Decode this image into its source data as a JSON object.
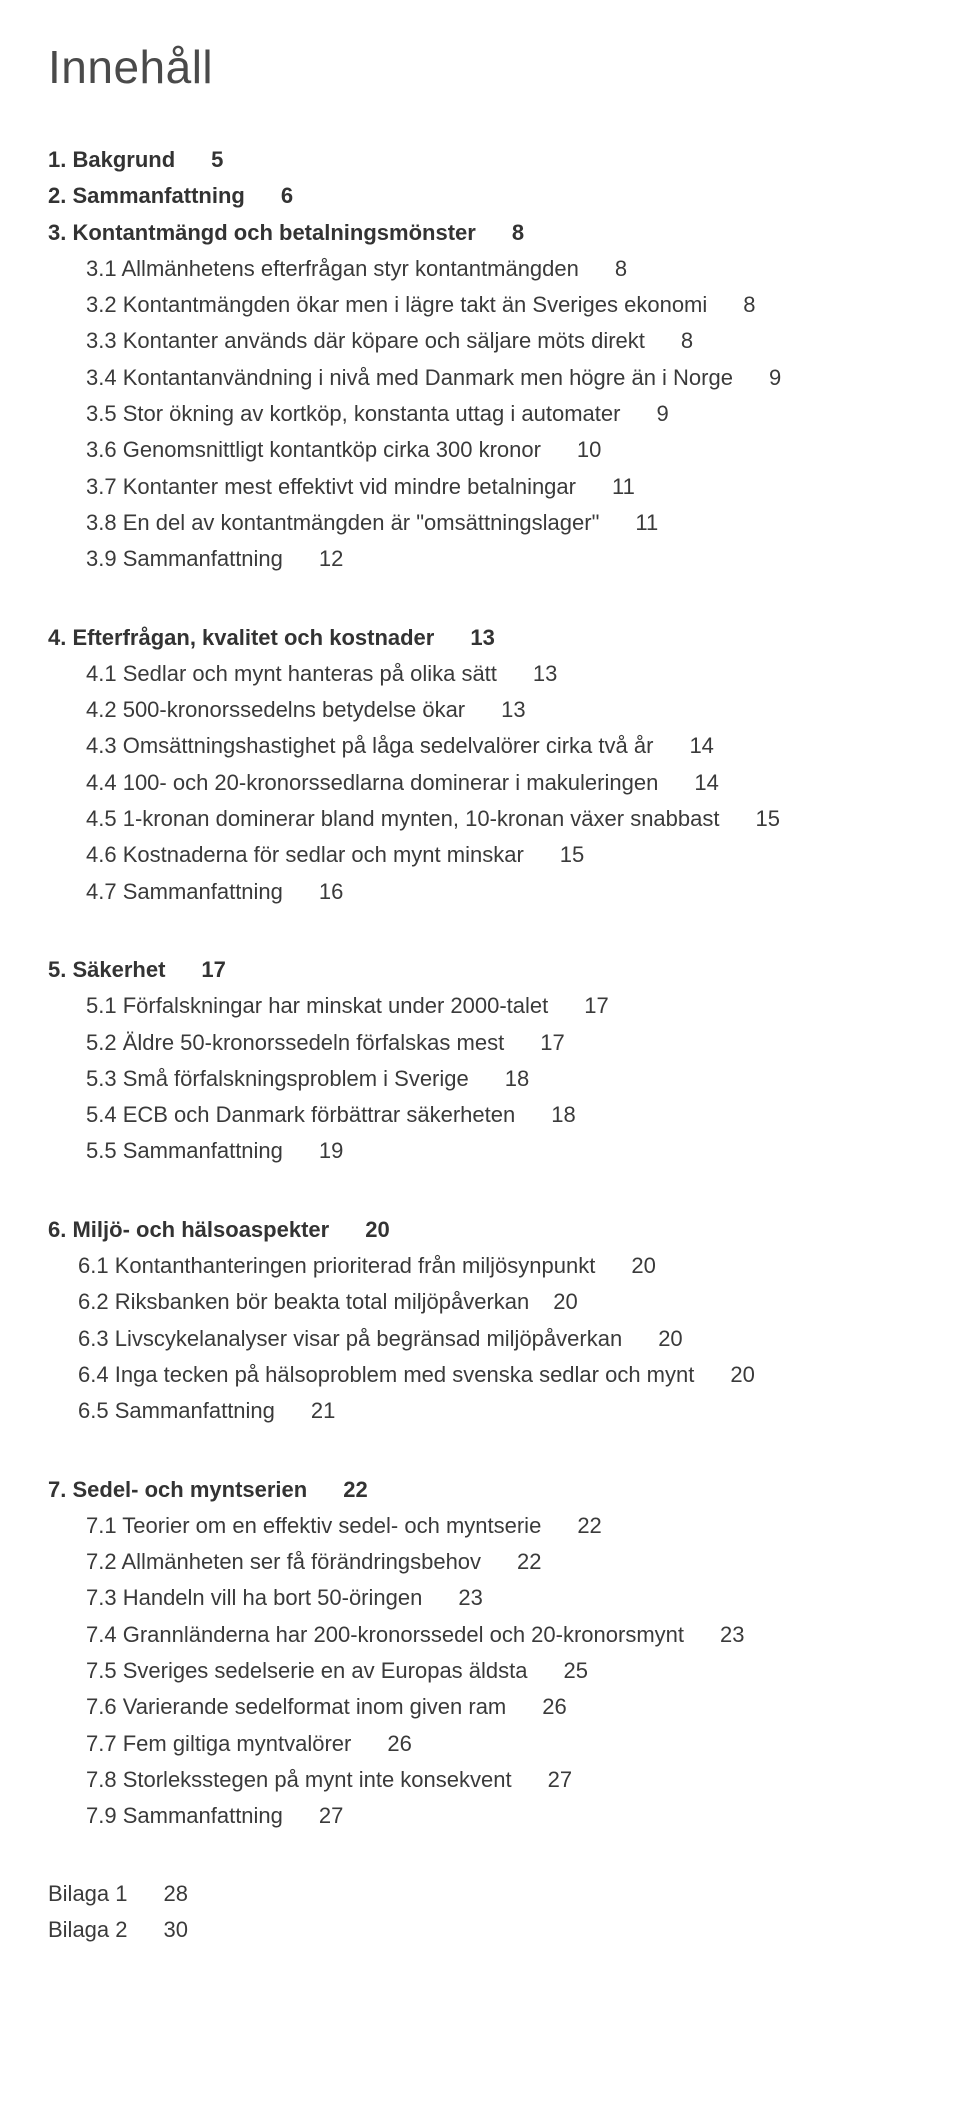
{
  "title": "Innehåll",
  "sections": [
    {
      "heading": {
        "num": "1.",
        "label": "Bakgrund",
        "page": "5"
      },
      "entries": []
    },
    {
      "heading": {
        "num": "2.",
        "label": "Sammanfattning",
        "page": "6"
      },
      "entries": []
    },
    {
      "heading": {
        "num": "3.",
        "label": "Kontantmängd och betalningsmönster",
        "page": "8"
      },
      "entries": [
        {
          "num": "3.1",
          "label": "Allmänhetens efterfrågan styr kontantmängden",
          "page": "8"
        },
        {
          "num": "3.2",
          "label": "Kontantmängden ökar men i lägre takt än Sveriges ekonomi",
          "page": "8"
        },
        {
          "num": "3.3",
          "label": "Kontanter används där köpare och säljare möts direkt",
          "page": "8"
        },
        {
          "num": "3.4",
          "label": "Kontantanvändning i nivå med Danmark men högre än i Norge",
          "page": "9"
        },
        {
          "num": "3.5",
          "label": "Stor ökning av kortköp, konstanta uttag i automater",
          "page": "9"
        },
        {
          "num": "3.6",
          "label": "Genomsnittligt kontantköp cirka 300 kronor",
          "page": "10"
        },
        {
          "num": "3.7",
          "label": "Kontanter mest effektivt vid mindre betalningar",
          "page": "11"
        },
        {
          "num": "3.8",
          "label": "En del av kontantmängden är \"omsättningslager\"",
          "page": "11"
        },
        {
          "num": "3.9",
          "label": "Sammanfattning",
          "page": "12"
        }
      ]
    },
    {
      "heading": {
        "num": "4.",
        "label": "Efterfrågan, kvalitet och kostnader",
        "page": "13"
      },
      "entries": [
        {
          "num": "4.1",
          "label": "Sedlar och mynt hanteras på olika sätt",
          "page": "13"
        },
        {
          "num": "4.2",
          "label": "500-kronorssedelns betydelse ökar",
          "page": "13"
        },
        {
          "num": "4.3",
          "label": "Omsättningshastighet på låga sedelvalörer cirka två år",
          "page": "14"
        },
        {
          "num": "4.4",
          "label": "100- och 20-kronorssedlarna dominerar i makuleringen",
          "page": "14"
        },
        {
          "num": "4.5",
          "label": "1-kronan dominerar bland mynten, 10-kronan växer snabbast",
          "page": "15"
        },
        {
          "num": "4.6",
          "label": "Kostnaderna för sedlar och mynt minskar",
          "page": "15"
        },
        {
          "num": "4.7",
          "label": "Sammanfattning",
          "page": "16"
        }
      ]
    },
    {
      "heading": {
        "num": "5.",
        "label": "Säkerhet",
        "page": "17"
      },
      "entries": [
        {
          "num": "5.1",
          "label": "Förfalskningar har minskat under 2000-talet",
          "page": "17"
        },
        {
          "num": "5.2",
          "label": "Äldre 50-kronorssedeln förfalskas mest",
          "page": "17"
        },
        {
          "num": "5.3",
          "label": "Små förfalskningsproblem i Sverige",
          "page": "18"
        },
        {
          "num": "5.4",
          "label": "ECB och Danmark förbättrar säkerheten",
          "page": "18"
        },
        {
          "num": "5.5",
          "label": "Sammanfattning",
          "page": "19"
        }
      ]
    },
    {
      "heading": {
        "num": "6.",
        "label": "Miljö- och hälsoaspekter",
        "page": "20"
      },
      "tight": true,
      "entries": [
        {
          "num": "6.1",
          "label": "Kontanthanteringen prioriterad från miljösynpunkt",
          "page": "20"
        },
        {
          "num": "6.2",
          "label": "Riksbanken bör beakta total miljöpåverkan",
          "page": "20",
          "pageTight": true
        },
        {
          "num": "6.3",
          "label": "Livscykelanalyser visar på begränsad miljöpåverkan",
          "page": "20"
        },
        {
          "num": "6.4",
          "label": "Inga tecken på hälsoproblem med svenska sedlar och mynt",
          "page": "20"
        },
        {
          "num": "6.5",
          "label": "Sammanfattning",
          "page": "21"
        }
      ]
    },
    {
      "heading": {
        "num": "7.",
        "label": "Sedel- och myntserien",
        "page": "22"
      },
      "entries": [
        {
          "num": "7.1",
          "label": "Teorier om en effektiv sedel- och myntserie",
          "page": "22"
        },
        {
          "num": "7.2",
          "label": "Allmänheten ser få förändringsbehov",
          "page": "22"
        },
        {
          "num": "7.3",
          "label": "Handeln vill ha bort 50-öringen",
          "page": "23"
        },
        {
          "num": "7.4",
          "label": "Grannländerna har 200-kronorssedel och 20-kronorsmynt",
          "page": "23"
        },
        {
          "num": "7.5",
          "label": "Sveriges sedelserie en av Europas äldsta",
          "page": "25"
        },
        {
          "num": "7.6",
          "label": "Varierande sedelformat inom given ram",
          "page": "26"
        },
        {
          "num": "7.7",
          "label": "Fem giltiga myntvalörer",
          "page": "26"
        },
        {
          "num": "7.8",
          "label": "Storleksstegen på mynt inte konsekvent",
          "page": "27"
        },
        {
          "num": "7.9",
          "label": "Sammanfattning",
          "page": "27"
        }
      ]
    }
  ],
  "appendices": [
    {
      "label": "Bilaga 1",
      "page": "28"
    },
    {
      "label": "Bilaga 2",
      "page": "30"
    }
  ]
}
